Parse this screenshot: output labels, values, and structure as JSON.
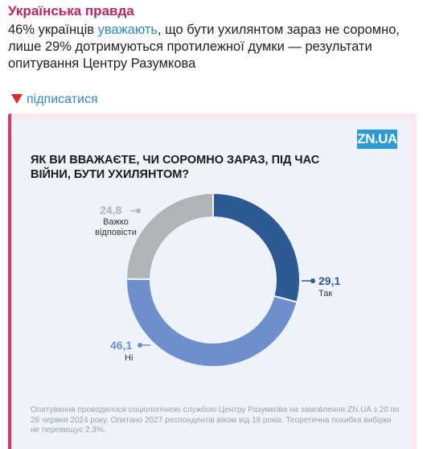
{
  "channel": {
    "name": "Українська правда"
  },
  "message": {
    "pre_link": "46% українців ",
    "link_text": "уважають",
    "post_link": ", що бути ухилянтом зараз не соромно, лише 29% дотримуються протилежної думки — результати опитування Центру Разумкова"
  },
  "subscribe": {
    "label": "підписатися"
  },
  "card": {
    "logo": "ZN.UA",
    "question": "ЯК ВИ ВВАЖАЄТЕ, ЧИ СОРОМНО ЗАРАЗ, ПІД ЧАС ВІЙНИ, БУТИ УХИЛЯНТОМ?",
    "footer": "Опитування проводилося соціологічною службою Центру Разумкова на замовлення ZN.UA з 20 по 28 червня 2024 року. Опитано 2027 респондентів віком від 18 років. Теоретична похибка вибірки не перевищує 2,3%."
  },
  "colors": {
    "accent": "#c0245e",
    "link": "#2f87c9",
    "tak": "#2d5a94",
    "ni": "#6f8fcc",
    "hard": "#b0b4b8"
  },
  "chart_data": {
    "type": "pie",
    "variant": "donut",
    "title": "ЯК ВИ ВВАЖАЄТЕ, ЧИ СОРОМНО ЗАРАЗ, ПІД ЧАС ВІЙНИ, БУТИ УХИЛЯНТОМ?",
    "slices": [
      {
        "label": "Так",
        "value": 29.1,
        "display": "29,1",
        "color": "#2d5a94"
      },
      {
        "label": "Ні",
        "value": 46.1,
        "display": "46,1",
        "color": "#6f8fcc"
      },
      {
        "label": "Важко відповісти",
        "value": 24.8,
        "display": "24,8",
        "color": "#b0b4b8"
      }
    ]
  }
}
